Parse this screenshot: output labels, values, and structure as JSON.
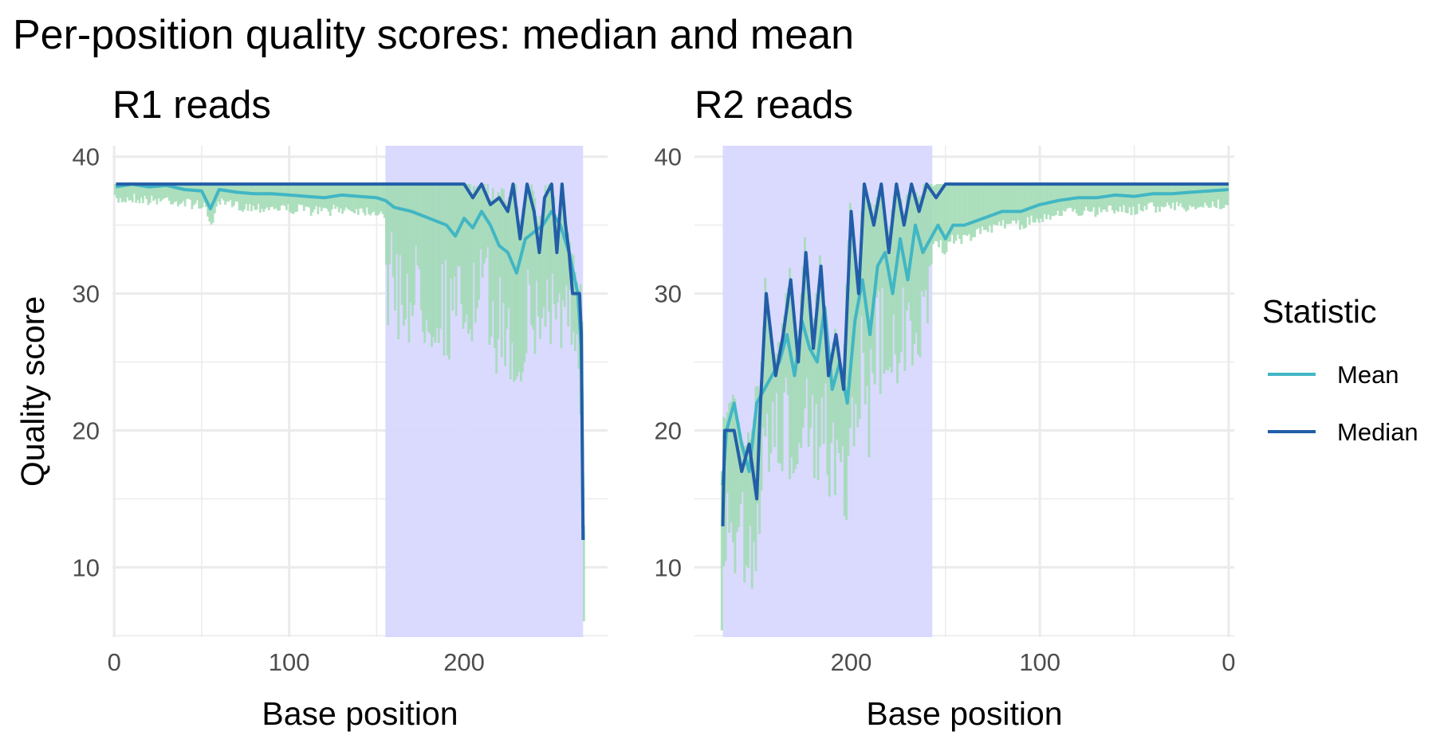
{
  "title": "Per-position quality scores: median and mean",
  "colors": {
    "mean": "#41B6C4",
    "median": "#225EA8",
    "range_fill": "#A1DAB4",
    "highlight": "#D8D8FF",
    "grid": "#EBEBEB"
  },
  "legend": {
    "title": "Statistic",
    "items": [
      {
        "label": "Mean",
        "color": "#41B6C4"
      },
      {
        "label": "Median",
        "color": "#225EA8"
      }
    ]
  },
  "chart_data": [
    {
      "type": "line",
      "panel_title": "R1 reads",
      "xlabel": "Base position",
      "ylabel": "Quality score",
      "xlim": [
        -1,
        282
      ],
      "x_reversed": false,
      "ylim": [
        4.9,
        40.8
      ],
      "x_ticks": [
        0,
        100,
        200
      ],
      "y_ticks": [
        10,
        20,
        30,
        40
      ],
      "highlight_x": [
        155,
        268
      ],
      "range_shading": true,
      "grid": true,
      "series": [
        {
          "name": "Mean",
          "points": [
            [
              1,
              37.8
            ],
            [
              10,
              38
            ],
            [
              20,
              37.8
            ],
            [
              30,
              37.9
            ],
            [
              40,
              37.6
            ],
            [
              50,
              37.5
            ],
            [
              55,
              36.2
            ],
            [
              60,
              37.6
            ],
            [
              70,
              37.4
            ],
            [
              80,
              37.3
            ],
            [
              90,
              37.3
            ],
            [
              100,
              37.2
            ],
            [
              110,
              37.1
            ],
            [
              120,
              37
            ],
            [
              130,
              37.2
            ],
            [
              140,
              37.1
            ],
            [
              150,
              37
            ],
            [
              155,
              36.8
            ],
            [
              160,
              36.3
            ],
            [
              170,
              36
            ],
            [
              180,
              35.5
            ],
            [
              190,
              35
            ],
            [
              195,
              34.2
            ],
            [
              200,
              35.5
            ],
            [
              205,
              34.8
            ],
            [
              210,
              36
            ],
            [
              215,
              35
            ],
            [
              220,
              33.5
            ],
            [
              225,
              33
            ],
            [
              230,
              31.5
            ],
            [
              235,
              34
            ],
            [
              240,
              34.5
            ],
            [
              245,
              35
            ],
            [
              250,
              36
            ],
            [
              255,
              35
            ],
            [
              260,
              33
            ],
            [
              265,
              30
            ],
            [
              267,
              26
            ],
            [
              268,
              12
            ]
          ]
        },
        {
          "name": "Median",
          "points": [
            [
              1,
              38
            ],
            [
              200,
              38
            ],
            [
              205,
              37
            ],
            [
              210,
              38
            ],
            [
              215,
              36.5
            ],
            [
              220,
              37
            ],
            [
              225,
              36
            ],
            [
              228,
              38
            ],
            [
              232,
              34
            ],
            [
              236,
              38
            ],
            [
              240,
              36
            ],
            [
              243,
              33
            ],
            [
              246,
              37
            ],
            [
              250,
              38
            ],
            [
              253,
              33
            ],
            [
              256,
              38
            ],
            [
              258,
              35
            ],
            [
              260,
              33
            ],
            [
              262,
              30
            ],
            [
              266,
              30
            ],
            [
              267,
              27
            ],
            [
              268,
              12
            ]
          ]
        }
      ]
    },
    {
      "type": "line",
      "panel_title": "R2 reads",
      "xlabel": "Base position",
      "ylabel": "",
      "xlim": [
        283,
        -3
      ],
      "x_reversed": true,
      "ylim": [
        4.9,
        40.8
      ],
      "x_ticks": [
        200,
        100,
        0
      ],
      "y_ticks": [
        10,
        20,
        30,
        40
      ],
      "highlight_x": [
        157,
        268
      ],
      "range_shading": true,
      "grid": true,
      "series": [
        {
          "name": "Mean",
          "points": [
            [
              268,
              16
            ],
            [
              266,
              20
            ],
            [
              262,
              22
            ],
            [
              258,
              19
            ],
            [
              254,
              17
            ],
            [
              250,
              22
            ],
            [
              246,
              23
            ],
            [
              242,
              24
            ],
            [
              238,
              25
            ],
            [
              234,
              27
            ],
            [
              230,
              24
            ],
            [
              226,
              28
            ],
            [
              222,
              26
            ],
            [
              218,
              25
            ],
            [
              214,
              29
            ],
            [
              210,
              23
            ],
            [
              206,
              25
            ],
            [
              202,
              22
            ],
            [
              198,
              28
            ],
            [
              194,
              31
            ],
            [
              190,
              27
            ],
            [
              186,
              32
            ],
            [
              182,
              33
            ],
            [
              178,
              30
            ],
            [
              174,
              34
            ],
            [
              170,
              31
            ],
            [
              166,
              35
            ],
            [
              162,
              33
            ],
            [
              158,
              34
            ],
            [
              154,
              35
            ],
            [
              150,
              34
            ],
            [
              146,
              35
            ],
            [
              140,
              35
            ],
            [
              130,
              35.5
            ],
            [
              120,
              36
            ],
            [
              110,
              36
            ],
            [
              100,
              36.5
            ],
            [
              90,
              36.8
            ],
            [
              80,
              37
            ],
            [
              70,
              37
            ],
            [
              60,
              37.2
            ],
            [
              50,
              37.1
            ],
            [
              40,
              37.3
            ],
            [
              30,
              37.3
            ],
            [
              20,
              37.4
            ],
            [
              10,
              37.5
            ],
            [
              0,
              37.6
            ]
          ]
        },
        {
          "name": "Median",
          "points": [
            [
              268,
              13
            ],
            [
              267,
              20
            ],
            [
              262,
              20
            ],
            [
              258,
              17
            ],
            [
              254,
              19
            ],
            [
              250,
              15
            ],
            [
              248,
              22
            ],
            [
              245,
              30
            ],
            [
              240,
              24
            ],
            [
              236,
              27
            ],
            [
              232,
              31
            ],
            [
              228,
              25
            ],
            [
              224,
              33
            ],
            [
              220,
              26
            ],
            [
              216,
              32
            ],
            [
              212,
              24
            ],
            [
              208,
              27
            ],
            [
              204,
              23
            ],
            [
              200,
              36
            ],
            [
              196,
              30
            ],
            [
              193,
              38
            ],
            [
              188,
              35
            ],
            [
              184,
              38
            ],
            [
              180,
              33
            ],
            [
              176,
              38
            ],
            [
              172,
              35
            ],
            [
              168,
              38
            ],
            [
              164,
              36
            ],
            [
              160,
              38
            ],
            [
              155,
              37
            ],
            [
              150,
              38
            ],
            [
              140,
              38
            ],
            [
              130,
              38
            ],
            [
              120,
              38
            ],
            [
              110,
              38
            ],
            [
              100,
              38
            ],
            [
              80,
              38
            ],
            [
              60,
              38
            ],
            [
              40,
              38
            ],
            [
              20,
              38
            ],
            [
              0,
              38
            ]
          ]
        }
      ]
    }
  ]
}
